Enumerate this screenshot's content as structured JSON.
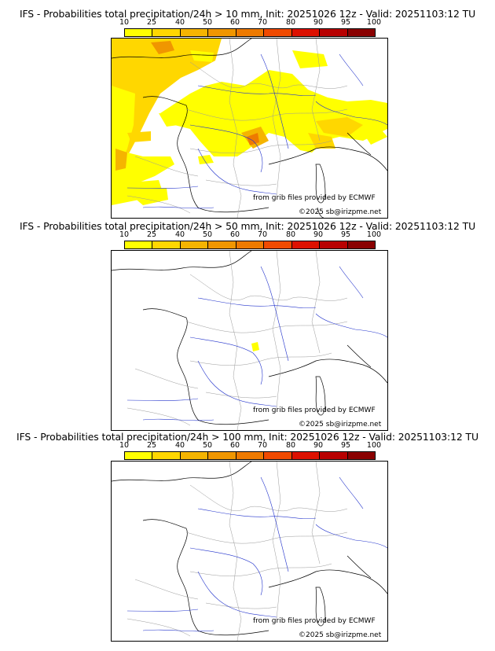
{
  "scale": {
    "ticks": [
      "10",
      "25",
      "40",
      "50",
      "60",
      "70",
      "80",
      "90",
      "95",
      "100"
    ],
    "colors": [
      "#ffff00",
      "#ffd700",
      "#f5b400",
      "#f09600",
      "#ee7a00",
      "#f04a00",
      "#dd1100",
      "#b80000",
      "#8a0000",
      "#5c0000"
    ]
  },
  "panels": [
    {
      "title": "IFS - Probabilities total precipitation/24h > 10 mm, Init: 20251026 12z - Valid: 20251103:12 TU",
      "credit_source": "from grib files provided by ECMWF",
      "credit_copyright": "©2025 sb@irizpme.net"
    },
    {
      "title": "IFS - Probabilities total precipitation/24h > 50 mm, Init: 20251026 12z - Valid: 20251103:12 TU",
      "credit_source": "from grib files provided by ECMWF",
      "credit_copyright": "©2025 sb@irizpme.net"
    },
    {
      "title": "IFS - Probabilities total precipitation/24h > 100 mm, Init: 20251026 12z - Valid: 20251103:12 TU",
      "credit_source": "from grib files provided by ECMWF",
      "credit_copyright": "©2025 sb@irizpme.net"
    }
  ]
}
